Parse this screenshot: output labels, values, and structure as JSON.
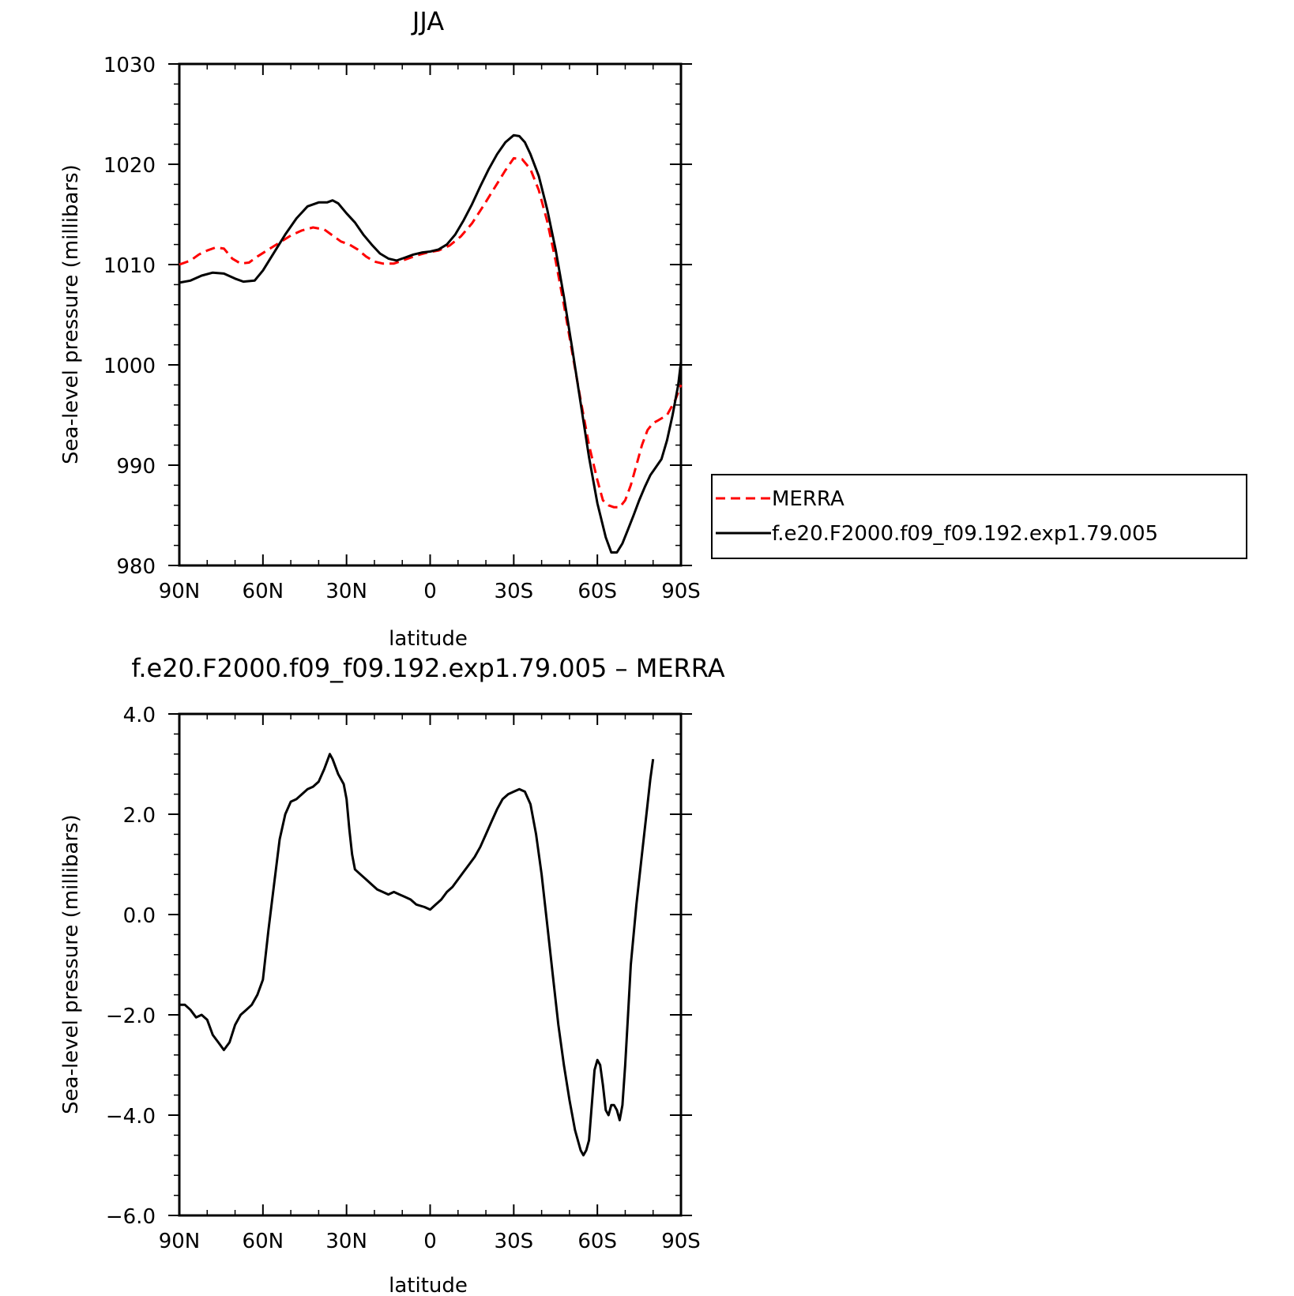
{
  "chart_data": [
    {
      "type": "line",
      "title": "JJA",
      "xlabel": "latitude",
      "ylabel": "Sea-level pressure (millibars)",
      "xlim": [
        90,
        -90
      ],
      "ylim": [
        980,
        1030
      ],
      "x_tick_values": [
        90,
        60,
        30,
        0,
        -30,
        -60,
        -90
      ],
      "x_tick_labels": [
        "90N",
        "60N",
        "30N",
        "0",
        "30S",
        "60S",
        "90S"
      ],
      "y_tick_values": [
        980,
        990,
        1000,
        1010,
        1020,
        1030
      ],
      "y_tick_labels": [
        "980",
        "990",
        "1000",
        "1010",
        "1020",
        "1030"
      ],
      "legend_position": "right",
      "series": [
        {
          "name": "MERRA",
          "color": "#ff0000",
          "style": "dashed",
          "points": [
            [
              90,
              1010
            ],
            [
              86,
              1010.4
            ],
            [
              83,
              1011
            ],
            [
              80,
              1011.4
            ],
            [
              77,
              1011.7
            ],
            [
              74,
              1011.6
            ],
            [
              71,
              1010.6
            ],
            [
              68,
              1010.1
            ],
            [
              65,
              1010.2
            ],
            [
              62,
              1010.8
            ],
            [
              58,
              1011.5
            ],
            [
              54,
              1012.2
            ],
            [
              50,
              1012.9
            ],
            [
              46,
              1013.4
            ],
            [
              42,
              1013.7
            ],
            [
              38,
              1013.5
            ],
            [
              35,
              1012.9
            ],
            [
              32,
              1012.3
            ],
            [
              29,
              1012
            ],
            [
              26,
              1011.5
            ],
            [
              23,
              1010.8
            ],
            [
              20,
              1010.3
            ],
            [
              17,
              1010.1
            ],
            [
              13,
              1010.1
            ],
            [
              9,
              1010.5
            ],
            [
              5,
              1010.9
            ],
            [
              1,
              1011.2
            ],
            [
              -3,
              1011.4
            ],
            [
              -7,
              1011.9
            ],
            [
              -11,
              1012.8
            ],
            [
              -15,
              1014.1
            ],
            [
              -19,
              1015.8
            ],
            [
              -23,
              1017.6
            ],
            [
              -27,
              1019.4
            ],
            [
              -30,
              1020.6
            ],
            [
              -33,
              1020.5
            ],
            [
              -36,
              1019.5
            ],
            [
              -39,
              1017.4
            ],
            [
              -42,
              1014.3
            ],
            [
              -45,
              1010.4
            ],
            [
              -48,
              1006
            ],
            [
              -51,
              1001.2
            ],
            [
              -54,
              996.5
            ],
            [
              -57,
              992
            ],
            [
              -60,
              988.5
            ],
            [
              -62,
              986.5
            ],
            [
              -64,
              986
            ],
            [
              -66,
              985.8
            ],
            [
              -68,
              985.8
            ],
            [
              -70,
              986.5
            ],
            [
              -72,
              988
            ],
            [
              -74,
              990
            ],
            [
              -76,
              992
            ],
            [
              -78,
              993.5
            ],
            [
              -80,
              994.2
            ],
            [
              -82,
              994.5
            ],
            [
              -85,
              995
            ],
            [
              -88,
              996.5
            ],
            [
              -90,
              998
            ]
          ]
        },
        {
          "name": "f.e20.F2000.f09_f09.192.exp1.79.005",
          "color": "#000000",
          "style": "solid",
          "points": [
            [
              90,
              1008.2
            ],
            [
              86,
              1008.4
            ],
            [
              82,
              1008.9
            ],
            [
              78,
              1009.2
            ],
            [
              74,
              1009.1
            ],
            [
              70,
              1008.6
            ],
            [
              67,
              1008.3
            ],
            [
              63,
              1008.4
            ],
            [
              60,
              1009.4
            ],
            [
              56,
              1011.2
            ],
            [
              52,
              1013
            ],
            [
              48,
              1014.6
            ],
            [
              44,
              1015.8
            ],
            [
              40,
              1016.2
            ],
            [
              37,
              1016.2
            ],
            [
              35,
              1016.4
            ],
            [
              33,
              1016.1
            ],
            [
              30,
              1015.1
            ],
            [
              27,
              1014.2
            ],
            [
              24,
              1013
            ],
            [
              21,
              1012
            ],
            [
              18,
              1011.1
            ],
            [
              15,
              1010.6
            ],
            [
              12,
              1010.4
            ],
            [
              9,
              1010.7
            ],
            [
              6,
              1011
            ],
            [
              3,
              1011.2
            ],
            [
              0,
              1011.3
            ],
            [
              -3,
              1011.5
            ],
            [
              -6,
              1012
            ],
            [
              -9,
              1013
            ],
            [
              -12,
              1014.4
            ],
            [
              -15,
              1016
            ],
            [
              -18,
              1017.8
            ],
            [
              -21,
              1019.5
            ],
            [
              -24,
              1021
            ],
            [
              -27,
              1022.2
            ],
            [
              -30,
              1022.9
            ],
            [
              -32,
              1022.8
            ],
            [
              -34,
              1022.2
            ],
            [
              -36,
              1021
            ],
            [
              -39,
              1018.8
            ],
            [
              -42,
              1015.5
            ],
            [
              -45,
              1011.5
            ],
            [
              -48,
              1006.8
            ],
            [
              -51,
              1001.6
            ],
            [
              -54,
              996.2
            ],
            [
              -57,
              990.8
            ],
            [
              -60,
              986.2
            ],
            [
              -63,
              982.8
            ],
            [
              -65,
              981.3
            ],
            [
              -67,
              981.3
            ],
            [
              -69,
              982.2
            ],
            [
              -71,
              983.6
            ],
            [
              -73,
              985
            ],
            [
              -75,
              986.5
            ],
            [
              -77,
              987.8
            ],
            [
              -79,
              989
            ],
            [
              -81,
              989.8
            ],
            [
              -83,
              990.6
            ],
            [
              -85,
              992.5
            ],
            [
              -87,
              995
            ],
            [
              -89,
              998
            ],
            [
              -90,
              1000.3
            ]
          ]
        }
      ]
    },
    {
      "type": "line",
      "title": "f.e20.F2000.f09_f09.192.exp1.79.005 – MERRA",
      "xlabel": "latitude",
      "ylabel": "Sea-level pressure (millibars)",
      "xlim": [
        90,
        -90
      ],
      "ylim": [
        -6,
        4
      ],
      "x_tick_values": [
        90,
        60,
        30,
        0,
        -30,
        -60,
        -90
      ],
      "x_tick_labels": [
        "90N",
        "60N",
        "30N",
        "0",
        "30S",
        "60S",
        "90S"
      ],
      "y_tick_values": [
        -6,
        -4,
        -2,
        0,
        2,
        4
      ],
      "y_tick_labels": [
        "−6.0",
        "−4.0",
        "−2.0",
        "0.0",
        "2.0",
        "4.0"
      ],
      "series": [
        {
          "color": "#000000",
          "style": "solid",
          "points": [
            [
              90,
              -1.8
            ],
            [
              88,
              -1.8
            ],
            [
              86,
              -1.9
            ],
            [
              84,
              -2.05
            ],
            [
              82,
              -2
            ],
            [
              80,
              -2.1
            ],
            [
              78,
              -2.4
            ],
            [
              76,
              -2.55
            ],
            [
              74,
              -2.7
            ],
            [
              72,
              -2.55
            ],
            [
              70,
              -2.2
            ],
            [
              68,
              -2
            ],
            [
              66,
              -1.9
            ],
            [
              64,
              -1.8
            ],
            [
              62,
              -1.6
            ],
            [
              60,
              -1.3
            ],
            [
              58,
              -0.3
            ],
            [
              56,
              0.6
            ],
            [
              54,
              1.5
            ],
            [
              52,
              2
            ],
            [
              50,
              2.25
            ],
            [
              48,
              2.3
            ],
            [
              46,
              2.4
            ],
            [
              44,
              2.5
            ],
            [
              42,
              2.55
            ],
            [
              40,
              2.65
            ],
            [
              38,
              2.9
            ],
            [
              36,
              3.2
            ],
            [
              35,
              3.1
            ],
            [
              33,
              2.8
            ],
            [
              31,
              2.6
            ],
            [
              30,
              2.3
            ],
            [
              29,
              1.7
            ],
            [
              28,
              1.2
            ],
            [
              27,
              0.9
            ],
            [
              25,
              0.8
            ],
            [
              23,
              0.7
            ],
            [
              21,
              0.6
            ],
            [
              19,
              0.5
            ],
            [
              17,
              0.45
            ],
            [
              15,
              0.4
            ],
            [
              13,
              0.45
            ],
            [
              11,
              0.4
            ],
            [
              9,
              0.35
            ],
            [
              7,
              0.3
            ],
            [
              5,
              0.2
            ],
            [
              2,
              0.15
            ],
            [
              0,
              0.1
            ],
            [
              -2,
              0.2
            ],
            [
              -4,
              0.3
            ],
            [
              -6,
              0.45
            ],
            [
              -8,
              0.55
            ],
            [
              -10,
              0.7
            ],
            [
              -12,
              0.85
            ],
            [
              -14,
              1
            ],
            [
              -16,
              1.15
            ],
            [
              -18,
              1.35
            ],
            [
              -20,
              1.6
            ],
            [
              -22,
              1.85
            ],
            [
              -24,
              2.1
            ],
            [
              -26,
              2.3
            ],
            [
              -28,
              2.4
            ],
            [
              -30,
              2.45
            ],
            [
              -32,
              2.5
            ],
            [
              -34,
              2.45
            ],
            [
              -36,
              2.2
            ],
            [
              -38,
              1.6
            ],
            [
              -40,
              0.8
            ],
            [
              -42,
              -0.2
            ],
            [
              -44,
              -1.2
            ],
            [
              -46,
              -2.2
            ],
            [
              -48,
              -3
            ],
            [
              -50,
              -3.7
            ],
            [
              -52,
              -4.3
            ],
            [
              -54,
              -4.7
            ],
            [
              -55,
              -4.8
            ],
            [
              -56,
              -4.7
            ],
            [
              -57,
              -4.5
            ],
            [
              -58,
              -3.8
            ],
            [
              -59,
              -3.1
            ],
            [
              -60,
              -2.9
            ],
            [
              -61,
              -3
            ],
            [
              -62,
              -3.4
            ],
            [
              -63,
              -3.9
            ],
            [
              -64,
              -4
            ],
            [
              -65,
              -3.8
            ],
            [
              -66,
              -3.8
            ],
            [
              -67,
              -3.9
            ],
            [
              -68,
              -4.1
            ],
            [
              -69,
              -3.8
            ],
            [
              -70,
              -3
            ],
            [
              -71,
              -2
            ],
            [
              -72,
              -1
            ],
            [
              -74,
              0.2
            ],
            [
              -76,
              1.2
            ],
            [
              -78,
              2.2
            ],
            [
              -79,
              2.7
            ],
            [
              -80,
              3.1
            ]
          ]
        }
      ]
    }
  ],
  "legend": {
    "items": [
      {
        "label": "MERRA"
      },
      {
        "label": "f.e20.F2000.f09_f09.192.exp1.79.005"
      }
    ]
  }
}
